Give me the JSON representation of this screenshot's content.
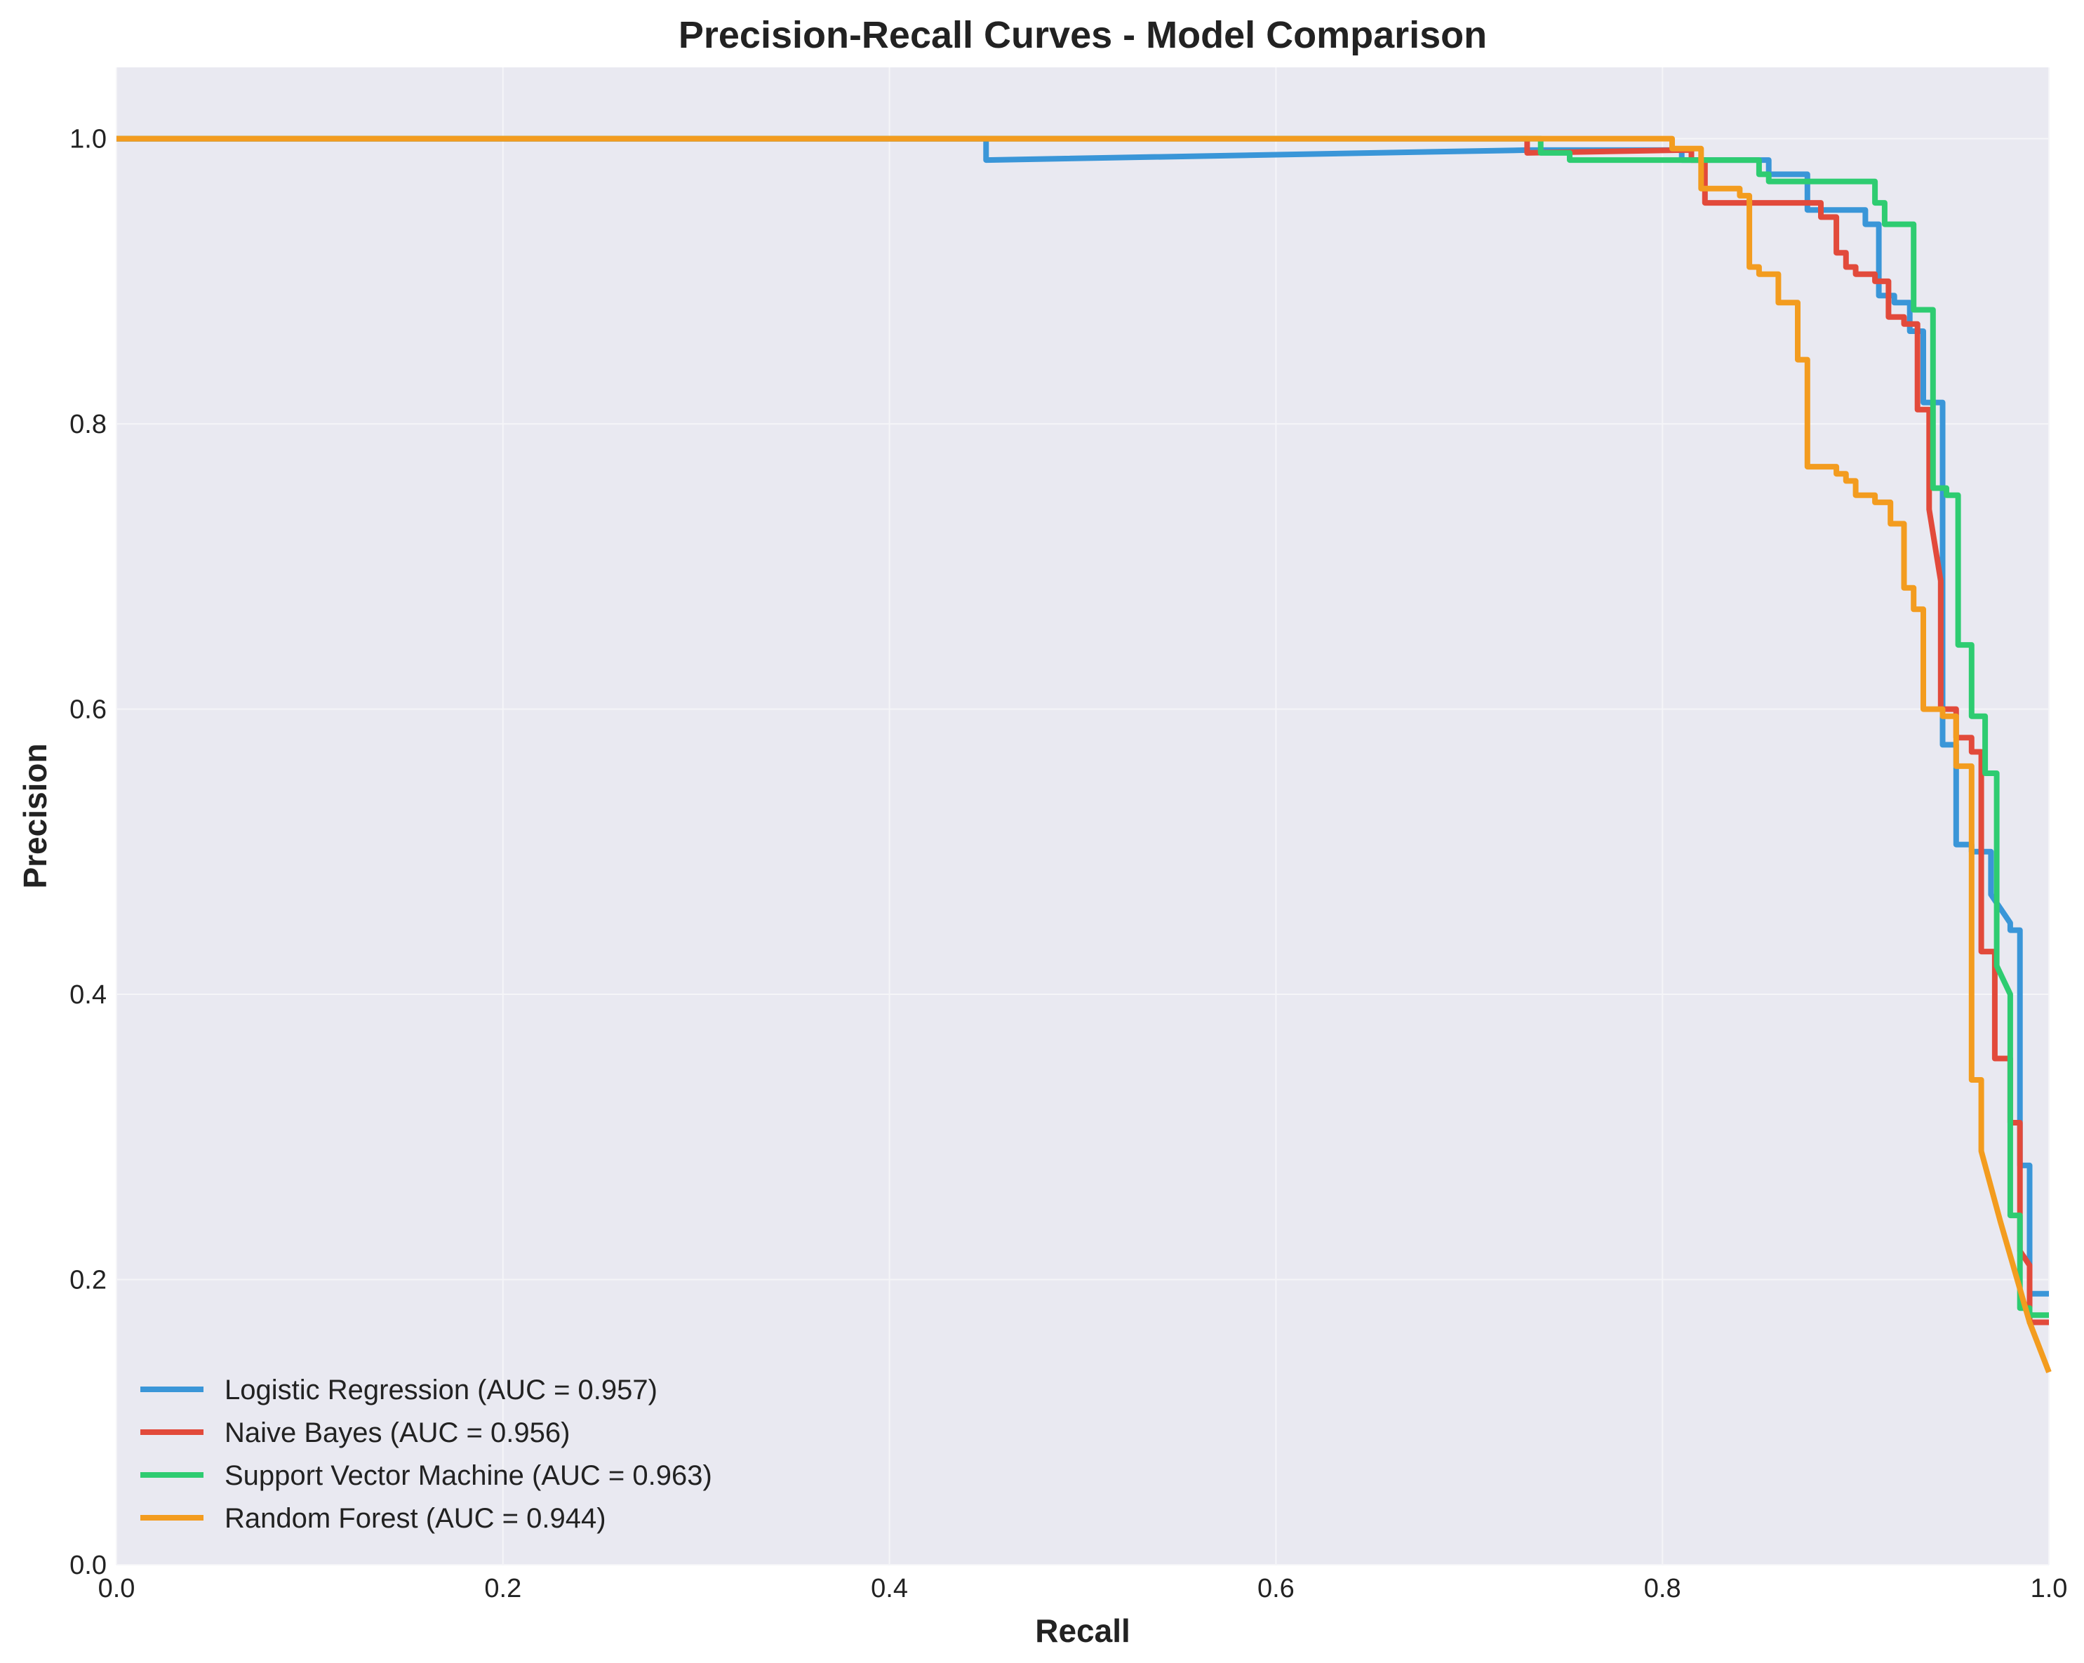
{
  "chart_data": {
    "type": "line",
    "title": "Precision-Recall Curves - Model Comparison",
    "xlabel": "Recall",
    "ylabel": "Precision",
    "xlim": [
      0.0,
      1.0
    ],
    "ylim": [
      0.0,
      1.05
    ],
    "xticks": [
      "0.0",
      "0.2",
      "0.4",
      "0.6",
      "0.8",
      "1.0"
    ],
    "yticks": [
      "0.0",
      "0.2",
      "0.4",
      "0.6",
      "0.8",
      "1.0"
    ],
    "grid": true,
    "legend_position": "lower-left",
    "background_color": "#e9e9f1",
    "grid_color": "#f5f5f8",
    "series": [
      {
        "name": "Logistic Regression (AUC = 0.957)",
        "color": "#3a96d8",
        "x": [
          0.0,
          0.45,
          0.45,
          0.73,
          0.81,
          0.81,
          0.855,
          0.855,
          0.875,
          0.875,
          0.905,
          0.905,
          0.912,
          0.912,
          0.92,
          0.92,
          0.928,
          0.928,
          0.935,
          0.935,
          0.945,
          0.945,
          0.952,
          0.952,
          0.96,
          0.96,
          0.97,
          0.97,
          0.975,
          0.98,
          0.98,
          0.985,
          0.985,
          0.99,
          0.99,
          0.995,
          1.0
        ],
        "y": [
          1.0,
          1.0,
          0.985,
          0.992,
          0.992,
          0.985,
          0.985,
          0.975,
          0.975,
          0.95,
          0.95,
          0.94,
          0.94,
          0.89,
          0.89,
          0.885,
          0.885,
          0.865,
          0.865,
          0.815,
          0.815,
          0.575,
          0.575,
          0.505,
          0.505,
          0.5,
          0.5,
          0.47,
          0.46,
          0.45,
          0.445,
          0.445,
          0.28,
          0.28,
          0.19,
          0.19,
          0.19
        ]
      },
      {
        "name": "Naive Bayes (AUC = 0.956)",
        "color": "#e24a3b",
        "x": [
          0.0,
          0.73,
          0.73,
          0.81,
          0.815,
          0.815,
          0.822,
          0.822,
          0.875,
          0.882,
          0.882,
          0.89,
          0.89,
          0.895,
          0.895,
          0.9,
          0.9,
          0.91,
          0.91,
          0.917,
          0.917,
          0.925,
          0.925,
          0.932,
          0.932,
          0.938,
          0.938,
          0.944,
          0.944,
          0.952,
          0.952,
          0.96,
          0.96,
          0.965,
          0.965,
          0.972,
          0.972,
          0.98,
          0.98,
          0.985,
          0.985,
          0.99,
          0.99,
          1.0
        ],
        "y": [
          1.0,
          1.0,
          0.99,
          0.992,
          0.992,
          0.985,
          0.985,
          0.955,
          0.955,
          0.955,
          0.945,
          0.945,
          0.92,
          0.92,
          0.91,
          0.91,
          0.905,
          0.905,
          0.9,
          0.9,
          0.875,
          0.875,
          0.87,
          0.87,
          0.81,
          0.81,
          0.74,
          0.69,
          0.6,
          0.6,
          0.58,
          0.58,
          0.57,
          0.57,
          0.43,
          0.43,
          0.355,
          0.355,
          0.31,
          0.31,
          0.22,
          0.21,
          0.17,
          0.17
        ]
      },
      {
        "name": "Support Vector Machine (AUC = 0.963)",
        "color": "#2ecc71",
        "x": [
          0.0,
          0.737,
          0.737,
          0.752,
          0.752,
          0.85,
          0.85,
          0.855,
          0.855,
          0.91,
          0.91,
          0.915,
          0.915,
          0.93,
          0.93,
          0.94,
          0.94,
          0.947,
          0.947,
          0.953,
          0.953,
          0.96,
          0.96,
          0.967,
          0.967,
          0.973,
          0.973,
          0.98,
          0.98,
          0.985,
          0.985,
          0.99,
          0.99,
          1.0
        ],
        "y": [
          1.0,
          1.0,
          0.99,
          0.99,
          0.985,
          0.985,
          0.975,
          0.975,
          0.97,
          0.97,
          0.955,
          0.955,
          0.94,
          0.94,
          0.88,
          0.88,
          0.755,
          0.755,
          0.75,
          0.75,
          0.645,
          0.645,
          0.595,
          0.595,
          0.555,
          0.555,
          0.42,
          0.4,
          0.245,
          0.245,
          0.18,
          0.18,
          0.175,
          0.175
        ]
      },
      {
        "name": "Random Forest (AUC = 0.944)",
        "color": "#f39c1f",
        "x": [
          0.0,
          0.805,
          0.805,
          0.82,
          0.82,
          0.84,
          0.84,
          0.845,
          0.845,
          0.85,
          0.85,
          0.86,
          0.86,
          0.87,
          0.87,
          0.875,
          0.875,
          0.89,
          0.89,
          0.895,
          0.895,
          0.9,
          0.9,
          0.91,
          0.91,
          0.918,
          0.918,
          0.925,
          0.925,
          0.93,
          0.93,
          0.935,
          0.935,
          0.945,
          0.945,
          0.952,
          0.952,
          0.96,
          0.96,
          0.965,
          0.965,
          0.975,
          0.99,
          1.0
        ],
        "y": [
          1.0,
          1.0,
          0.993,
          0.993,
          0.965,
          0.965,
          0.96,
          0.96,
          0.91,
          0.91,
          0.905,
          0.905,
          0.885,
          0.885,
          0.845,
          0.845,
          0.77,
          0.77,
          0.765,
          0.765,
          0.76,
          0.76,
          0.75,
          0.75,
          0.745,
          0.745,
          0.73,
          0.73,
          0.685,
          0.685,
          0.67,
          0.67,
          0.6,
          0.6,
          0.595,
          0.595,
          0.56,
          0.56,
          0.34,
          0.34,
          0.29,
          0.24,
          0.17,
          0.135
        ]
      }
    ]
  }
}
